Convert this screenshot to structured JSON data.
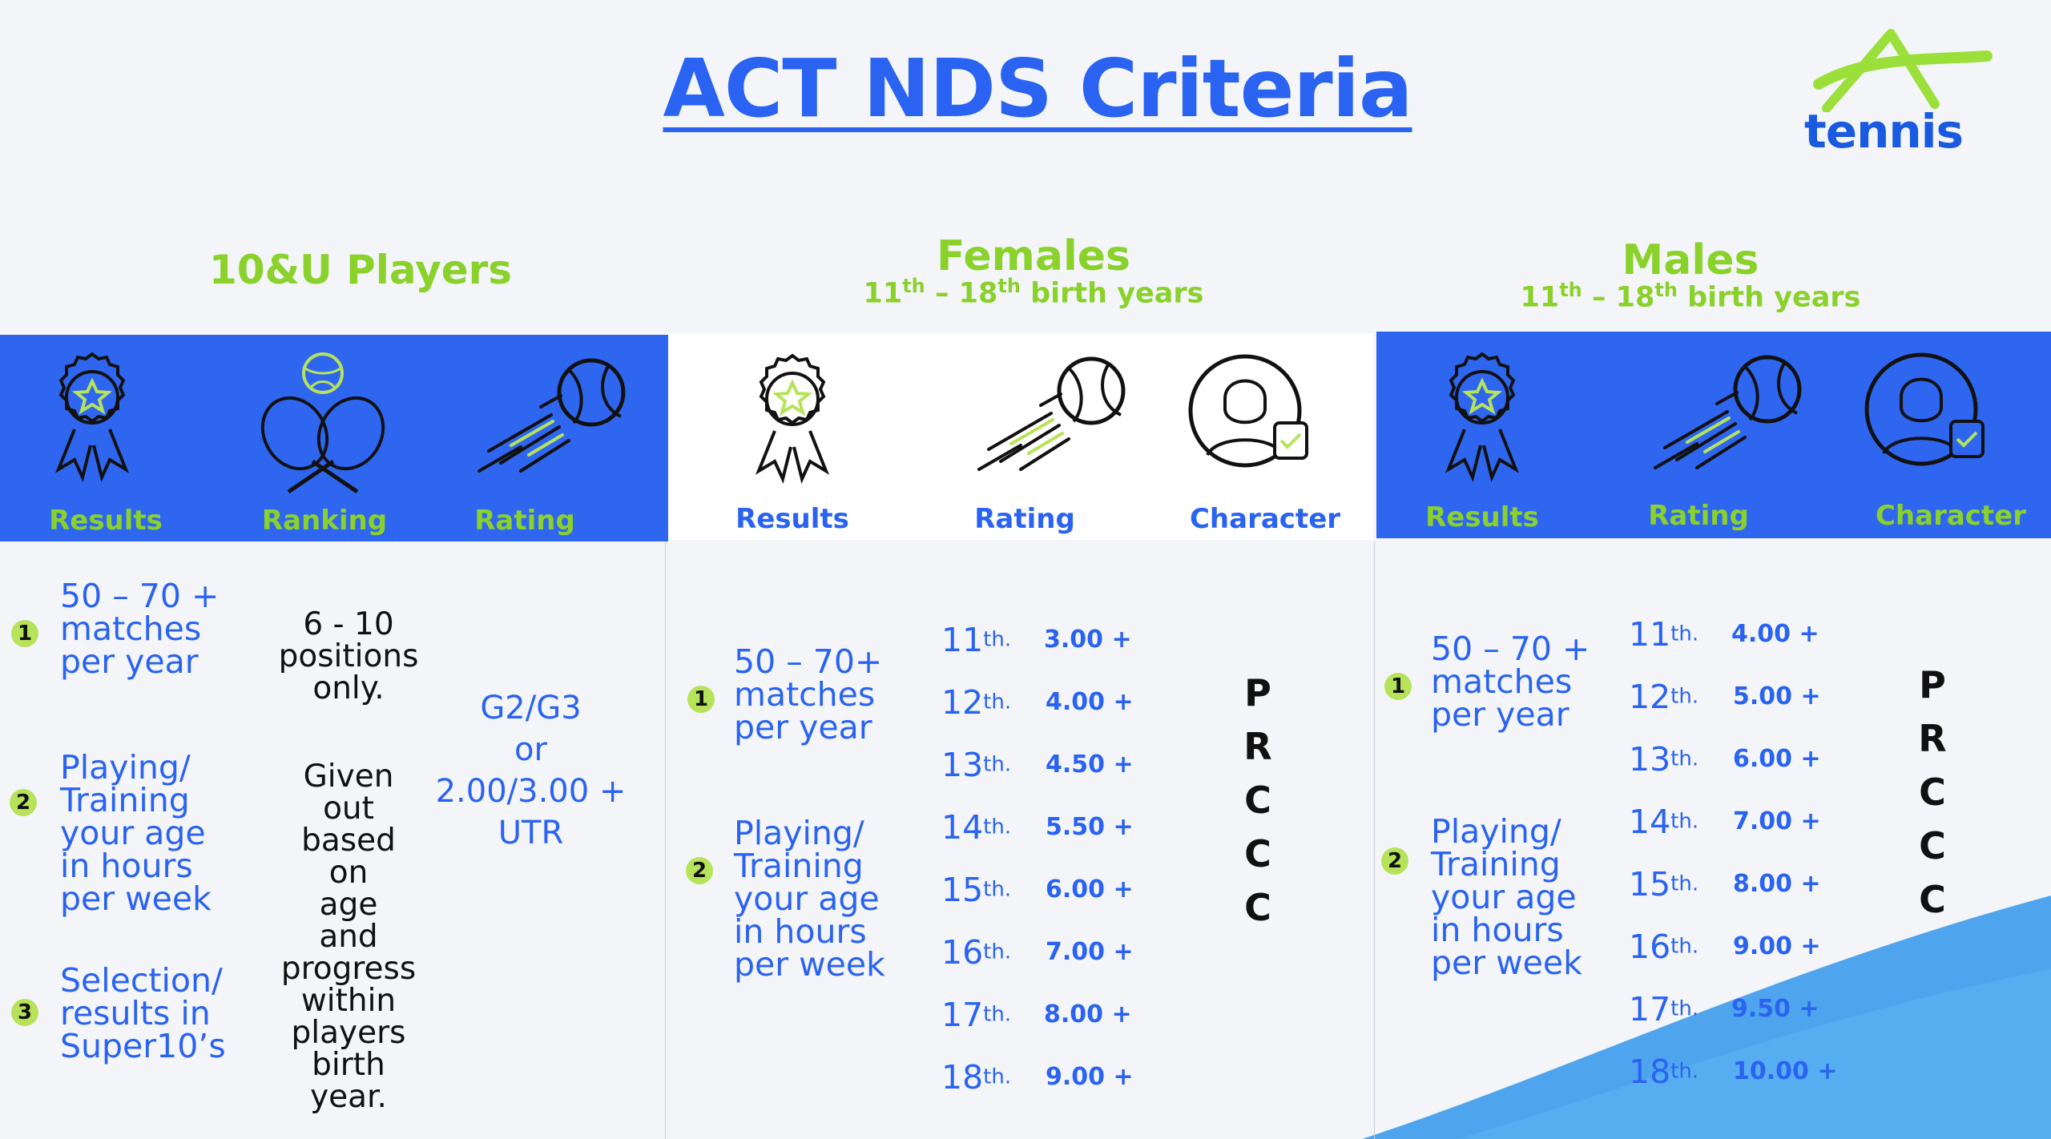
{
  "title": "ACT NDS Criteria",
  "logo": {
    "text": "tennis"
  },
  "colors": {
    "accent_blue": "#2f66f0",
    "accent_green": "#8ad12c",
    "badge_green": "#b6e35a"
  },
  "sections": {
    "u10": {
      "title": "10&U Players",
      "columns": [
        "Results",
        "Ranking",
        "Rating"
      ],
      "results": [
        {
          "num": "1",
          "lines": [
            "50 – 70 +",
            "matches",
            "per year"
          ]
        },
        {
          "num": "2",
          "lines": [
            "Playing/",
            "Training",
            "your age",
            "in hours",
            "per week"
          ]
        },
        {
          "num": "3",
          "lines": [
            "Selection/",
            "results in",
            "Super10’s"
          ]
        }
      ],
      "ranking_lines": [
        "6 - 10",
        "positions",
        "only.",
        "",
        "Given",
        "out",
        "based",
        "on",
        "age",
        "and",
        "progress",
        "within",
        "players",
        "birth",
        "year."
      ],
      "rating_lines": [
        "G2/G3",
        "or",
        "2.00/3.00 +",
        "UTR"
      ]
    },
    "females": {
      "title": "Females",
      "sub_a": "11",
      "sub_b": "th",
      "sub_c": " – 18",
      "sub_d": "th",
      "sub_e": " birth  years",
      "columns": [
        "Results",
        "Rating",
        "Character"
      ],
      "results": [
        {
          "num": "1",
          "lines": [
            "50 – 70+",
            "matches",
            "per year"
          ]
        },
        {
          "num": "2",
          "lines": [
            "Playing/",
            "Training",
            "your age",
            "in hours",
            "per week"
          ]
        }
      ],
      "ratings": [
        {
          "age": "11",
          "suffix": "th.",
          "value": "3.00 +"
        },
        {
          "age": "12",
          "suffix": "th.",
          "value": "4.00 +"
        },
        {
          "age": "13",
          "suffix": "th.",
          "value": "4.50 +"
        },
        {
          "age": "14",
          "suffix": "th.",
          "value": "5.50 +"
        },
        {
          "age": "15",
          "suffix": "th.",
          "value": "6.00 +"
        },
        {
          "age": "16",
          "suffix": "th.",
          "value": "7.00 +"
        },
        {
          "age": "17",
          "suffix": "th.",
          "value": "8.00 +"
        },
        {
          "age": "18",
          "suffix": "th.",
          "value": "9.00 +"
        }
      ],
      "character": [
        "P",
        "R",
        "C",
        "C",
        "C"
      ]
    },
    "males": {
      "title": "Males",
      "sub_a": "11",
      "sub_b": "th",
      "sub_c": " – 18",
      "sub_d": "th",
      "sub_e": " birth  years",
      "columns": [
        "Results",
        "Rating",
        "Character"
      ],
      "results": [
        {
          "num": "1",
          "lines": [
            "50 – 70 +",
            "matches",
            "per year"
          ]
        },
        {
          "num": "2",
          "lines": [
            "Playing/",
            "Training",
            "your age",
            "in hours",
            "per week"
          ]
        }
      ],
      "ratings": [
        {
          "age": "11",
          "suffix": "th.",
          "value": "4.00 +"
        },
        {
          "age": "12",
          "suffix": "th.",
          "value": "5.00 +"
        },
        {
          "age": "13",
          "suffix": "th.",
          "value": "6.00 +"
        },
        {
          "age": "14",
          "suffix": "th.",
          "value": "7.00 +"
        },
        {
          "age": "15",
          "suffix": "th.",
          "value": "8.00 +"
        },
        {
          "age": "16",
          "suffix": "th.",
          "value": "9.00 +"
        },
        {
          "age": "17",
          "suffix": "th.",
          "value": "9.50 +"
        },
        {
          "age": "18",
          "suffix": "th.",
          "value": "10.00 +"
        }
      ],
      "character": [
        "P",
        "R",
        "C",
        "C",
        "C"
      ]
    }
  }
}
